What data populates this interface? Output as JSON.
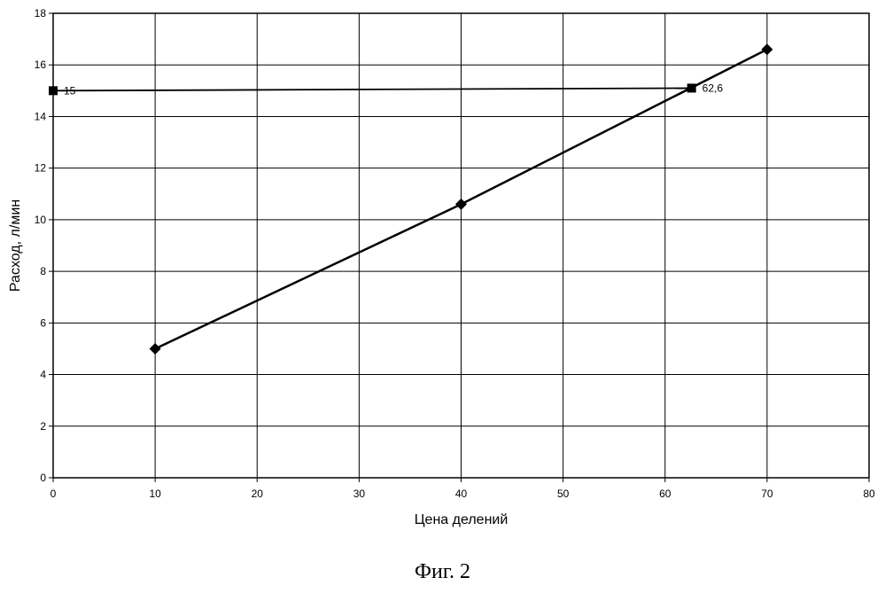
{
  "chart_data": {
    "type": "line",
    "xlabel": "Цена делений",
    "ylabel": "Расход, л/мин",
    "xlim": [
      0,
      80
    ],
    "ylim": [
      0,
      18
    ],
    "xticks": [
      0,
      10,
      20,
      30,
      40,
      50,
      60,
      70,
      80
    ],
    "yticks": [
      0,
      2,
      4,
      6,
      8,
      10,
      12,
      14,
      16,
      18
    ],
    "grid": true,
    "series": [
      {
        "marker": "diamond",
        "x": [
          10,
          40,
          70
        ],
        "y": [
          5.0,
          10.6,
          16.6
        ]
      },
      {
        "marker": "square",
        "x": [
          0,
          62.6
        ],
        "y": [
          15,
          15.1
        ]
      }
    ],
    "annotations": [
      {
        "text": "15",
        "x": 0,
        "y": 15
      },
      {
        "text": "62,6",
        "x": 62.6,
        "y": 15.1
      }
    ]
  },
  "caption": "Фиг. 2"
}
